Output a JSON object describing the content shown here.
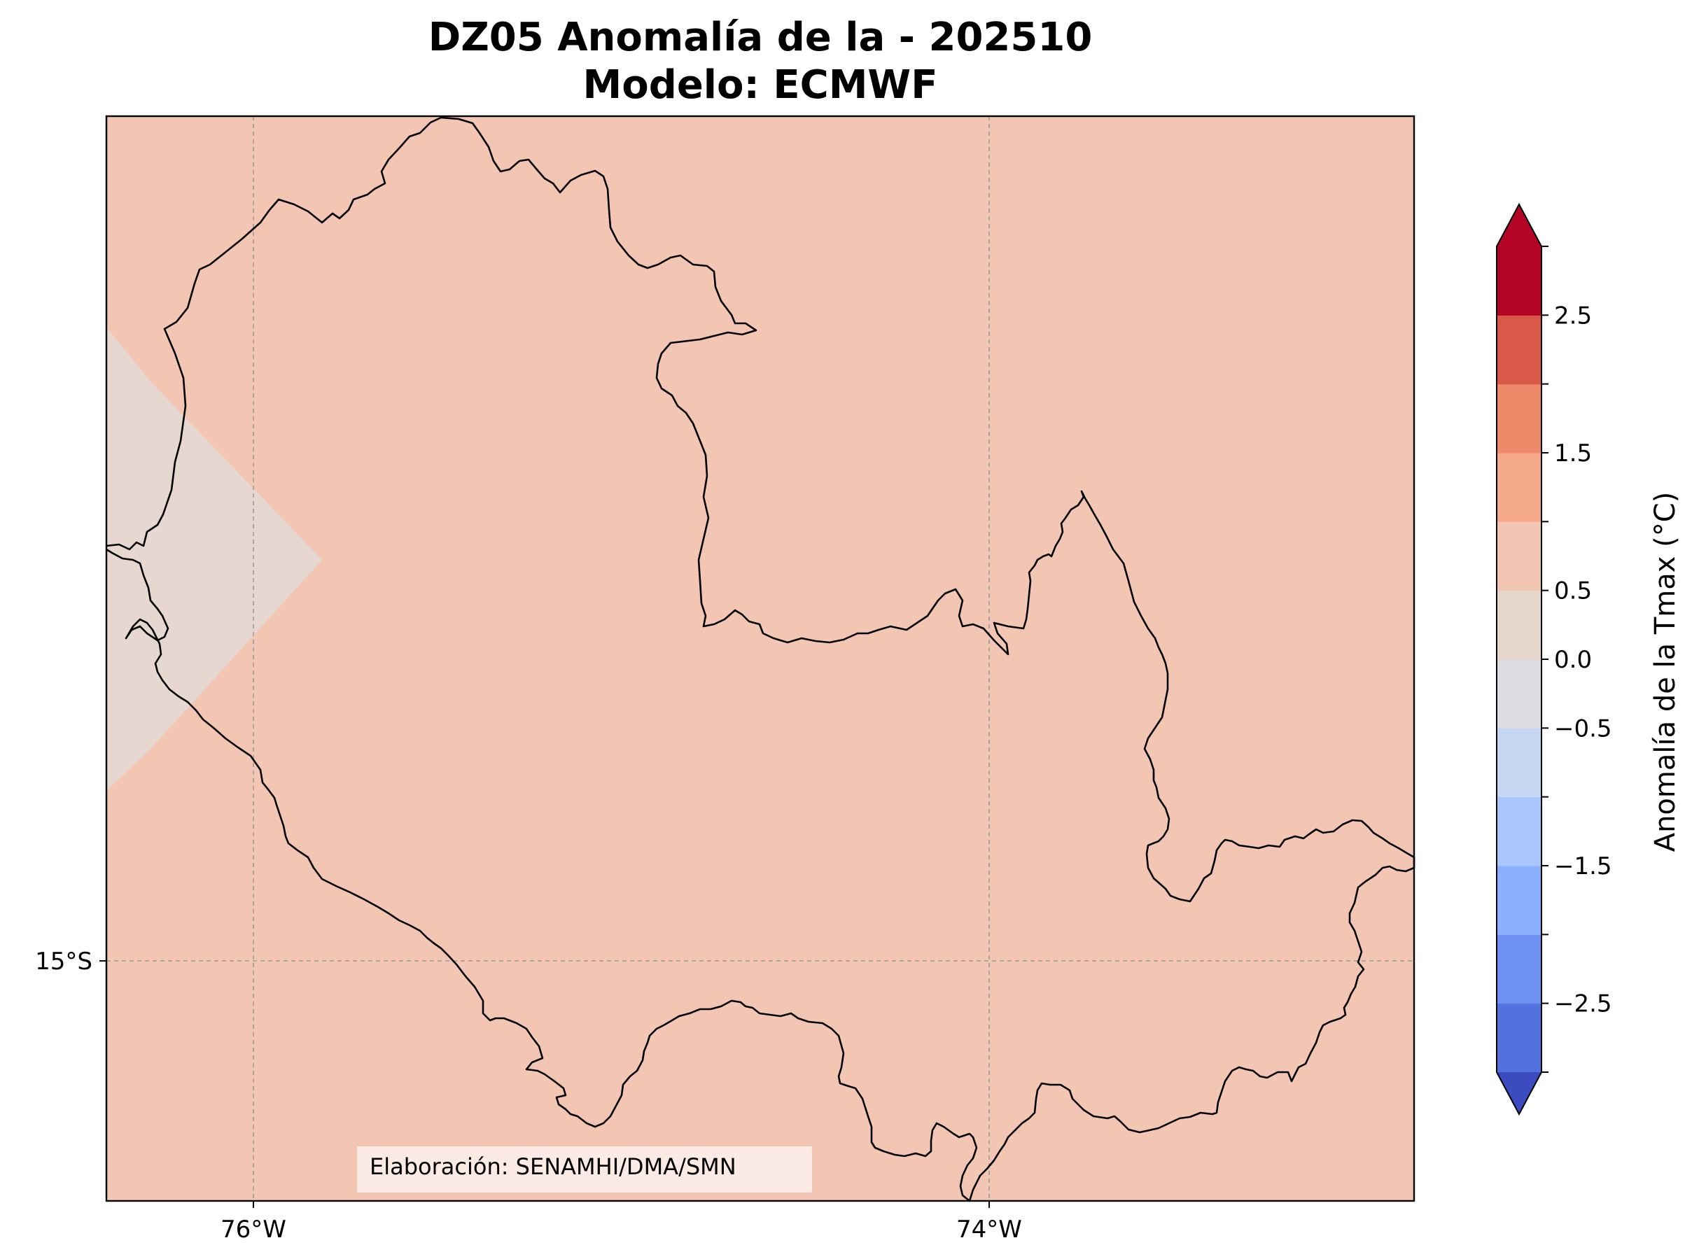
{
  "title": {
    "line1": "DZ05 Anomalía de la - 202510",
    "line2": "Modelo: ECMWF"
  },
  "map": {
    "lon_ticks": [
      "76°W",
      "74°W"
    ],
    "lat_ticks": [
      "15°S"
    ],
    "credit": "Elaboración: SENAMHI/DMA/SMN",
    "fill_colors": {
      "main": "#f2c6b2",
      "coast_patch": "#e6d8d0"
    },
    "gridlines": true
  },
  "colorbar": {
    "label": "Anomalía de la Tmax (°C)",
    "ticks": [
      "2.5",
      "1.5",
      "0.5",
      "0.0",
      "−0.5",
      "−1.5",
      "−2.5"
    ],
    "levels": [
      -3.0,
      -2.5,
      -2.0,
      -1.5,
      -1.0,
      -0.5,
      0.0,
      0.5,
      1.0,
      1.5,
      2.0,
      2.5,
      3.0
    ],
    "colors": [
      "#3b4cc0",
      "#5470de",
      "#6e90f2",
      "#8caffe",
      "#a9c6fd",
      "#c5d6f2",
      "#dcdde1",
      "#e7d6cc",
      "#f2c6b2",
      "#f5aa8c",
      "#ee8a6a",
      "#d95847",
      "#b40426"
    ],
    "extend": "both"
  }
}
